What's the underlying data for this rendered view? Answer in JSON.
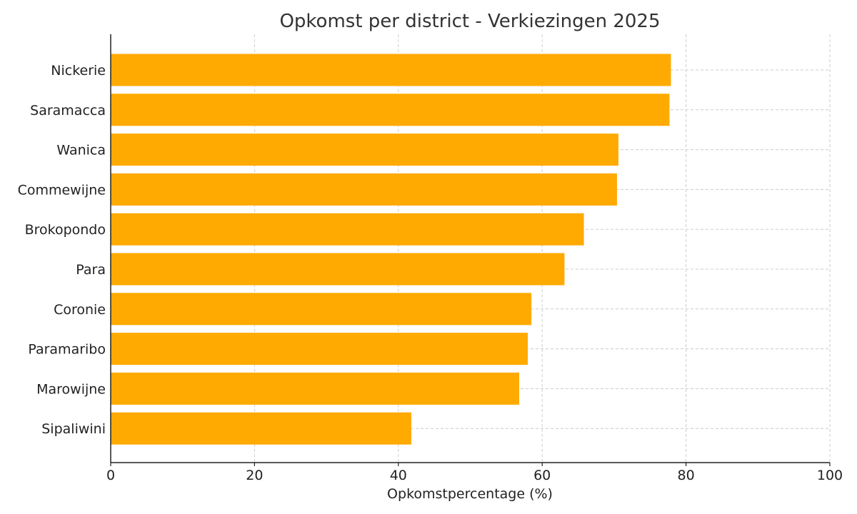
{
  "chart_data": {
    "type": "bar",
    "orientation": "horizontal",
    "title": "Opkomst per district - Verkiezingen 2025",
    "xlabel": "Opkomstpercentage (%)",
    "ylabel": "",
    "xlim": [
      0,
      100
    ],
    "xticks": [
      0,
      20,
      40,
      60,
      80,
      100
    ],
    "xtick_labels": [
      "0",
      "20",
      "40",
      "60",
      "80",
      "100"
    ],
    "grid": true,
    "bar_color": "#FFAA00",
    "categories": [
      "Nickerie",
      "Saramacca",
      "Wanica",
      "Commewijne",
      "Brokopondo",
      "Para",
      "Coronie",
      "Paramaribo",
      "Marowijne",
      "Sipaliwini"
    ],
    "values": [
      77.9,
      77.7,
      70.6,
      70.4,
      65.8,
      63.1,
      58.5,
      58.0,
      56.8,
      41.8
    ]
  }
}
